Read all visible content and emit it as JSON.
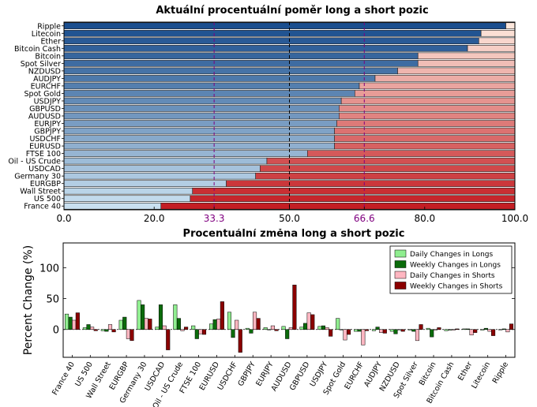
{
  "chart_data": [
    {
      "type": "bar",
      "orientation": "horizontal",
      "stacked": true,
      "title": "Aktuální procentuální poměr long a short pozic",
      "categories": [
        "Ripple",
        "Litecoin",
        "Ether",
        "Bitcoin Cash",
        "Bitcoin",
        "Spot Silver",
        "NZDUSD",
        "AUDJPY",
        "EURCHF",
        "Spot Gold",
        "USDJPY",
        "GBPUSD",
        "AUDUSD",
        "EURJPY",
        "GBPJPY",
        "USDCHF",
        "EURUSD",
        "FTSE 100",
        "Oil - US Crude",
        "USDCAD",
        "Germany 30",
        "EURGBP",
        "Wall Street",
        "US 500",
        "France 40"
      ],
      "long_values": [
        98.0,
        92.5,
        92.0,
        89.5,
        78.5,
        78.5,
        74.0,
        69.0,
        65.5,
        64.5,
        61.5,
        61.0,
        61.0,
        60.5,
        60.0,
        60.0,
        60.0,
        54.0,
        45.0,
        43.5,
        42.5,
        36.0,
        28.5,
        28.0,
        21.5
      ],
      "xlim": [
        0,
        100
      ],
      "xticks": [
        "0.0",
        "20.0",
        "33.3",
        "50.0",
        "66.6",
        "80.0",
        "100.0"
      ],
      "reference_lines": [
        33.3,
        50.0,
        66.6
      ],
      "colors": {
        "long_dark": "#1a4e8e",
        "long_light": "#c9e0f0",
        "short_light": "#fde7dc",
        "short_dark": "#c41e24",
        "ref_purple": "#800080"
      }
    },
    {
      "type": "bar",
      "title": "Procentuální změna long a short pozic",
      "ylabel": "Percent Change (%)",
      "yticks": [
        "0",
        "50",
        "100"
      ],
      "ylim": [
        -45,
        140
      ],
      "legend_position": "top-right",
      "categories": [
        "France 40",
        "US 500",
        "Wall Street",
        "EURGBP",
        "Germany 30",
        "USDCAD",
        "Oil - US Crude",
        "FTSE 100",
        "EURUSD",
        "USDCHF",
        "GBPJPY",
        "EURJPY",
        "AUDUSD",
        "GBPUSD",
        "USDJPY",
        "Spot Gold",
        "EURCHF",
        "AUDJPY",
        "NZDUSD",
        "Spot Silver",
        "Bitcoin",
        "Bitcoin Cash",
        "Ether",
        "Litecoin",
        "Ripple"
      ],
      "series": [
        {
          "name": "Daily Changes in Longs",
          "color": "#90ee90",
          "values": [
            25,
            3,
            -2,
            15,
            47,
            4,
            40,
            6,
            9,
            28,
            2,
            3,
            5,
            4,
            5,
            18,
            -3,
            -2,
            -3,
            -1,
            2,
            -2,
            1,
            -1,
            0
          ]
        },
        {
          "name": "Weekly Changes in Longs",
          "color": "#0b6b0b",
          "values": [
            20,
            8,
            -3,
            20,
            40,
            40,
            18,
            -15,
            16,
            -13,
            -6,
            0,
            -15,
            10,
            6,
            0,
            -3,
            4,
            -7,
            -3,
            -12,
            -1,
            1,
            2,
            1
          ]
        },
        {
          "name": "Daily Changes in Shorts",
          "color": "#ffb6c1",
          "values": [
            15,
            4,
            8,
            -15,
            18,
            6,
            -2,
            -7,
            17,
            15,
            28,
            6,
            3,
            27,
            3,
            -17,
            -25,
            -5,
            0,
            -18,
            -1,
            -1,
            -9,
            -3,
            -4
          ]
        },
        {
          "name": "Weekly Changes in Shorts",
          "color": "#8b0000",
          "values": [
            27,
            -2,
            -4,
            -18,
            17,
            -33,
            4,
            -8,
            45,
            -37,
            18,
            -2,
            72,
            24,
            -11,
            -8,
            -2,
            -6,
            -3,
            8,
            3,
            1,
            -5,
            -10,
            9
          ]
        }
      ]
    }
  ]
}
